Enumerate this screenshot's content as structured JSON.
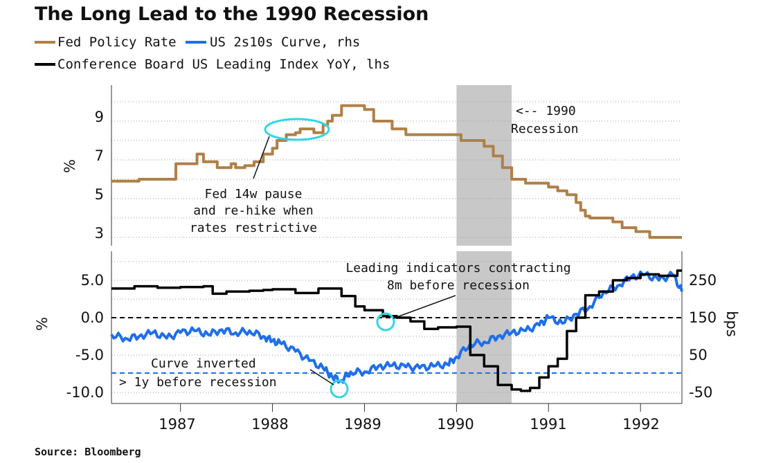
{
  "title": "The Long Lead to the 1990 Recession",
  "legend": {
    "fed": "Fed Policy Rate",
    "curve": "US 2s10s Curve, rhs",
    "lei": "Conference Board US Leading Index YoY, lhs"
  },
  "source": "Source: Bloomberg",
  "colors": {
    "fed": "#b07f47",
    "curve": "#1f6fe8",
    "lei": "#000000",
    "circle": "#2fd6e6",
    "recession": "#c8c8c8"
  },
  "top_panel": {
    "ylabel": "%",
    "ticks": [
      "9",
      "7",
      "5",
      "3"
    ]
  },
  "bottom_panel": {
    "ylabel_left": "%",
    "ylabel_right": "bps",
    "left_ticks": [
      "5.0",
      "0.0",
      "-5.0",
      "-10.0"
    ],
    "right_ticks": [
      "250",
      "150",
      "50",
      "-50"
    ]
  },
  "x_ticks": [
    "1987",
    "1988",
    "1989",
    "1990",
    "1991",
    "1992"
  ],
  "annotations": {
    "recession_line1": "<-- 1990",
    "recession_line2": "Recession",
    "pause_line1": "Fed 14w pause",
    "pause_line2": "and re-hike when",
    "pause_line3": "rates restrictive",
    "lead_line1": "Leading indicators contracting",
    "lead_line2": "8m before recession",
    "inv_line1": "Curve inverted",
    "inv_line2": "> 1y before recession"
  },
  "chart_data": [
    {
      "type": "line",
      "panel": "top",
      "ylabel": "%",
      "ylim": [
        2.7,
        10.5
      ],
      "xlim": [
        1986.25,
        1992.45
      ],
      "recession": [
        1990.0,
        1990.6
      ],
      "series": [
        {
          "name": "Fed Policy Rate",
          "x": [
            1986.25,
            1986.4,
            1986.55,
            1986.62,
            1986.7,
            1986.95,
            1987.0,
            1987.08,
            1987.18,
            1987.25,
            1987.4,
            1987.55,
            1987.6,
            1987.7,
            1987.8,
            1987.9,
            1988.0,
            1988.05,
            1988.15,
            1988.2,
            1988.25,
            1988.3,
            1988.37,
            1988.45,
            1988.55,
            1988.6,
            1988.65,
            1988.72,
            1988.75,
            1988.85,
            1988.95,
            1989.0,
            1989.1,
            1989.25,
            1989.3,
            1989.45,
            1989.5,
            1989.6,
            1989.7,
            1990.0,
            1990.05,
            1990.2,
            1990.3,
            1990.4,
            1990.5,
            1990.6,
            1990.75,
            1991.0,
            1991.1,
            1991.2,
            1991.3,
            1991.35,
            1991.4,
            1991.45,
            1991.7,
            1991.8,
            1991.95,
            1992.1,
            1992.15,
            1992.3,
            1992.45
          ],
          "values": [
            5.9,
            5.9,
            6.0,
            6.0,
            6.0,
            6.8,
            6.8,
            6.8,
            7.3,
            6.9,
            6.6,
            6.8,
            6.6,
            6.7,
            6.9,
            7.3,
            7.6,
            8.0,
            8.3,
            8.3,
            8.4,
            8.6,
            8.6,
            8.4,
            8.8,
            9.0,
            9.3,
            9.3,
            9.8,
            9.8,
            9.8,
            9.6,
            9.0,
            9.0,
            8.6,
            8.3,
            8.3,
            8.3,
            8.3,
            8.3,
            8.0,
            8.0,
            7.7,
            7.2,
            6.6,
            6.0,
            5.8,
            5.6,
            5.4,
            5.2,
            4.8,
            4.4,
            4.1,
            4.0,
            3.8,
            3.5,
            3.3,
            3.0,
            3.0,
            3.0,
            3.0
          ]
        }
      ]
    },
    {
      "type": "line",
      "panel": "bottom",
      "ylabel": "%",
      "y2label": "bps",
      "ylim": [
        -11.5,
        8.5
      ],
      "y2lim": [
        -60,
        315
      ],
      "xlim": [
        1986.25,
        1992.45
      ],
      "recession": [
        1990.0,
        1990.6
      ],
      "series": [
        {
          "name": "Conference Board US Leading Index YoY",
          "axis": "left",
          "x": [
            1986.25,
            1986.5,
            1986.75,
            1987.0,
            1987.25,
            1987.35,
            1987.5,
            1987.75,
            1987.9,
            1988.0,
            1988.25,
            1988.5,
            1988.75,
            1988.9,
            1989.0,
            1989.2,
            1989.35,
            1989.5,
            1989.65,
            1989.8,
            1990.0,
            1990.15,
            1990.3,
            1990.45,
            1990.6,
            1990.7,
            1990.8,
            1990.9,
            1991.0,
            1991.1,
            1991.2,
            1991.3,
            1991.4,
            1991.55,
            1991.7,
            1991.85,
            1992.0,
            1992.2,
            1992.4,
            1992.45
          ],
          "values": [
            3.9,
            4.2,
            4.0,
            4.1,
            4.2,
            3.2,
            3.5,
            3.6,
            3.7,
            3.8,
            3.3,
            3.9,
            2.9,
            1.5,
            1.0,
            0.2,
            0.0,
            -0.5,
            -1.5,
            -1.3,
            -1.2,
            -5.0,
            -6.5,
            -9.0,
            -9.6,
            -9.8,
            -9.4,
            -8.0,
            -6.5,
            -5.5,
            -1.8,
            0.0,
            3.0,
            3.5,
            5.0,
            5.3,
            5.8,
            5.6,
            6.3,
            6.3
          ]
        },
        {
          "name": "US 2s10s Curve",
          "axis": "right",
          "x": [
            1986.25,
            1986.4,
            1986.55,
            1986.7,
            1986.85,
            1987.0,
            1987.15,
            1987.3,
            1987.45,
            1987.6,
            1987.75,
            1987.9,
            1988.0,
            1988.1,
            1988.25,
            1988.4,
            1988.55,
            1988.65,
            1988.75,
            1988.85,
            1989.0,
            1989.15,
            1989.3,
            1989.45,
            1989.6,
            1989.75,
            1989.9,
            1990.0,
            1990.15,
            1990.3,
            1990.45,
            1990.6,
            1990.75,
            1990.9,
            1991.0,
            1991.15,
            1991.3,
            1991.45,
            1991.6,
            1991.75,
            1991.9,
            1992.05,
            1992.2,
            1992.35,
            1992.45
          ],
          "values": [
            105,
            95,
            100,
            110,
            95,
            110,
            115,
            105,
            118,
            110,
            115,
            100,
            88,
            80,
            60,
            35,
            15,
            -8,
            -18,
            5,
            5,
            20,
            22,
            18,
            15,
            20,
            25,
            45,
            80,
            85,
            100,
            110,
            115,
            130,
            150,
            135,
            160,
            180,
            220,
            235,
            260,
            265,
            250,
            265,
            220
          ]
        }
      ]
    }
  ]
}
